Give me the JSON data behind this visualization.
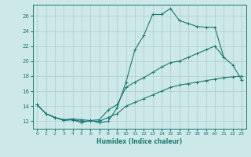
{
  "xlabel": "Humidex (Indice chaleur)",
  "background_color": "#cce8e8",
  "grid_color": "#aacccc",
  "line_color": "#1a7a6e",
  "xlim": [
    -0.5,
    23.5
  ],
  "ylim": [
    11.0,
    27.5
  ],
  "yticks": [
    12,
    14,
    16,
    18,
    20,
    22,
    24,
    26
  ],
  "xticks": [
    0,
    1,
    2,
    3,
    4,
    5,
    6,
    7,
    8,
    9,
    10,
    11,
    12,
    13,
    14,
    15,
    16,
    17,
    18,
    19,
    20,
    21,
    22,
    23
  ],
  "line1_x": [
    0,
    1,
    2,
    3,
    4,
    5,
    6,
    7,
    8,
    9,
    10,
    11,
    12,
    13,
    14,
    15,
    16,
    17,
    18,
    19,
    20,
    21
  ],
  "line1_y": [
    14.2,
    13.0,
    12.5,
    12.1,
    12.2,
    11.8,
    12.1,
    11.8,
    12.0,
    13.8,
    17.2,
    21.5,
    23.4,
    26.2,
    26.2,
    27.0,
    25.4,
    25.0,
    24.6,
    24.5,
    24.5,
    20.5
  ],
  "line2_x": [
    0,
    1,
    2,
    3,
    4,
    5,
    6,
    7,
    8,
    9,
    10,
    11,
    12,
    13,
    14,
    15,
    16,
    17,
    18,
    19,
    20,
    21,
    22,
    23
  ],
  "line2_y": [
    14.2,
    13.0,
    12.5,
    12.2,
    12.3,
    12.2,
    12.1,
    12.2,
    13.5,
    14.2,
    16.5,
    17.2,
    17.8,
    18.5,
    19.2,
    19.8,
    20.0,
    20.5,
    21.0,
    21.5,
    22.0,
    20.5,
    19.5,
    17.5
  ],
  "line3_x": [
    0,
    1,
    2,
    3,
    4,
    5,
    6,
    7,
    8,
    9,
    10,
    11,
    12,
    13,
    14,
    15,
    16,
    17,
    18,
    19,
    20,
    21,
    22,
    23
  ],
  "line3_y": [
    14.2,
    13.0,
    12.5,
    12.2,
    12.2,
    12.0,
    12.0,
    12.0,
    12.5,
    13.0,
    14.0,
    14.5,
    15.0,
    15.5,
    16.0,
    16.5,
    16.8,
    17.0,
    17.2,
    17.4,
    17.6,
    17.8,
    17.9,
    18.0
  ]
}
